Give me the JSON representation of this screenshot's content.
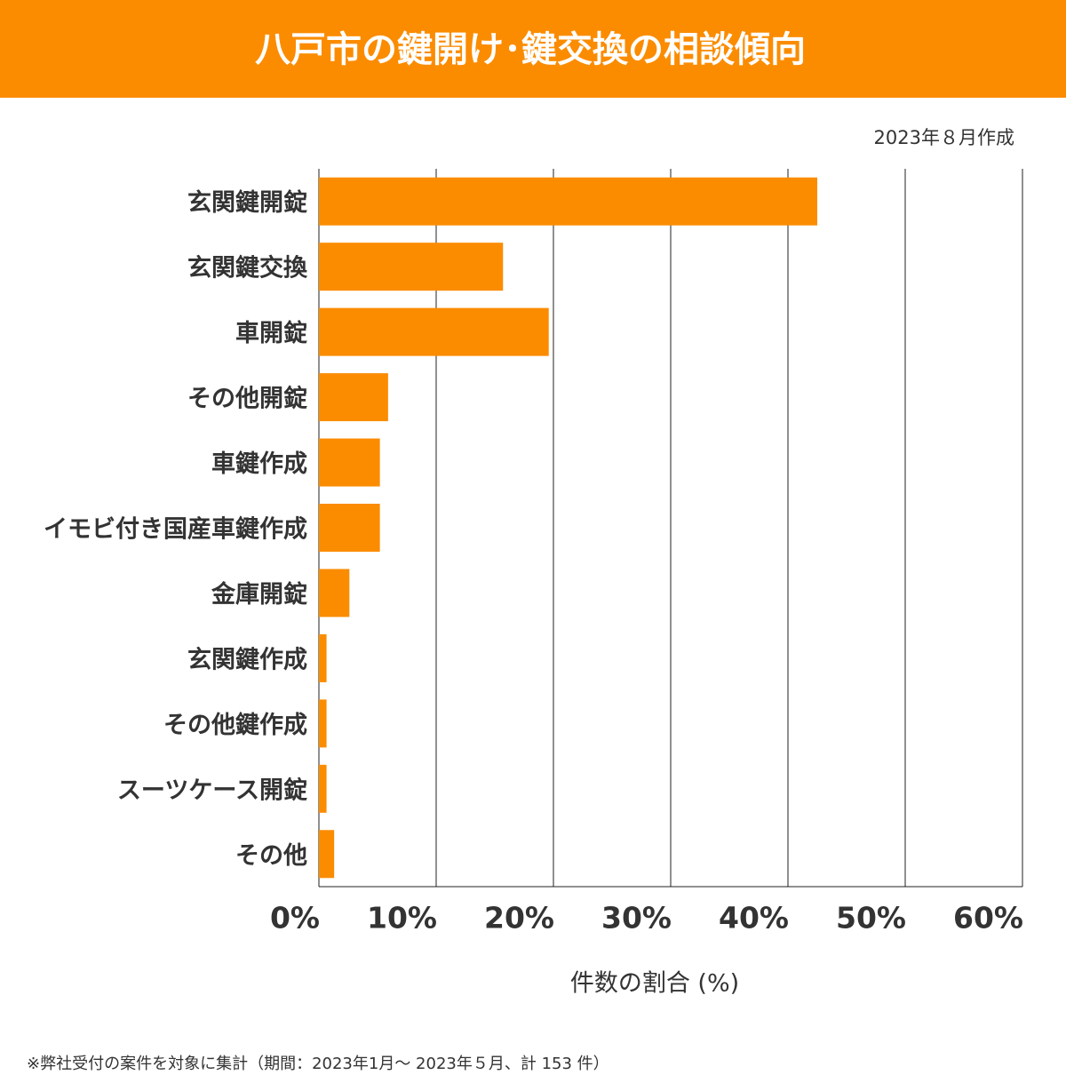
{
  "chart_data": {
    "type": "bar",
    "orientation": "horizontal",
    "title": "八戸市の鍵開け･鍵交換の相談傾向",
    "note": "2023年８月作成",
    "footnote": "※弊社受付の案件を対象に集計（期間：2023年1月～ 2023年５月、計 153 件）",
    "x_label": "件数の割合 (%)",
    "categories": [
      "玄関鍵開錠",
      "玄関鍵交換",
      "車開錠",
      "その他開錠",
      "車鍵作成",
      "イモビ付き国産車鍵作成",
      "金庫開錠",
      "玄関鍵作成",
      "その他鍵作成",
      "スーツケース開錠",
      "その他"
    ],
    "values": [
      42.5,
      15.7,
      19.6,
      5.9,
      5.2,
      5.2,
      2.6,
      0.65,
      0.65,
      0.65,
      1.3
    ],
    "color": "#fb8c00",
    "xlim": [
      0,
      60
    ],
    "xticks": [
      {
        "value": 0,
        "label": "0%"
      },
      {
        "value": 10,
        "label": "10%"
      },
      {
        "value": 20,
        "label": "20%"
      },
      {
        "value": 30,
        "label": "30%"
      },
      {
        "value": 40,
        "label": "40%"
      },
      {
        "value": 50,
        "label": "50%"
      },
      {
        "value": 60,
        "label": "60%"
      }
    ],
    "grid": true
  }
}
